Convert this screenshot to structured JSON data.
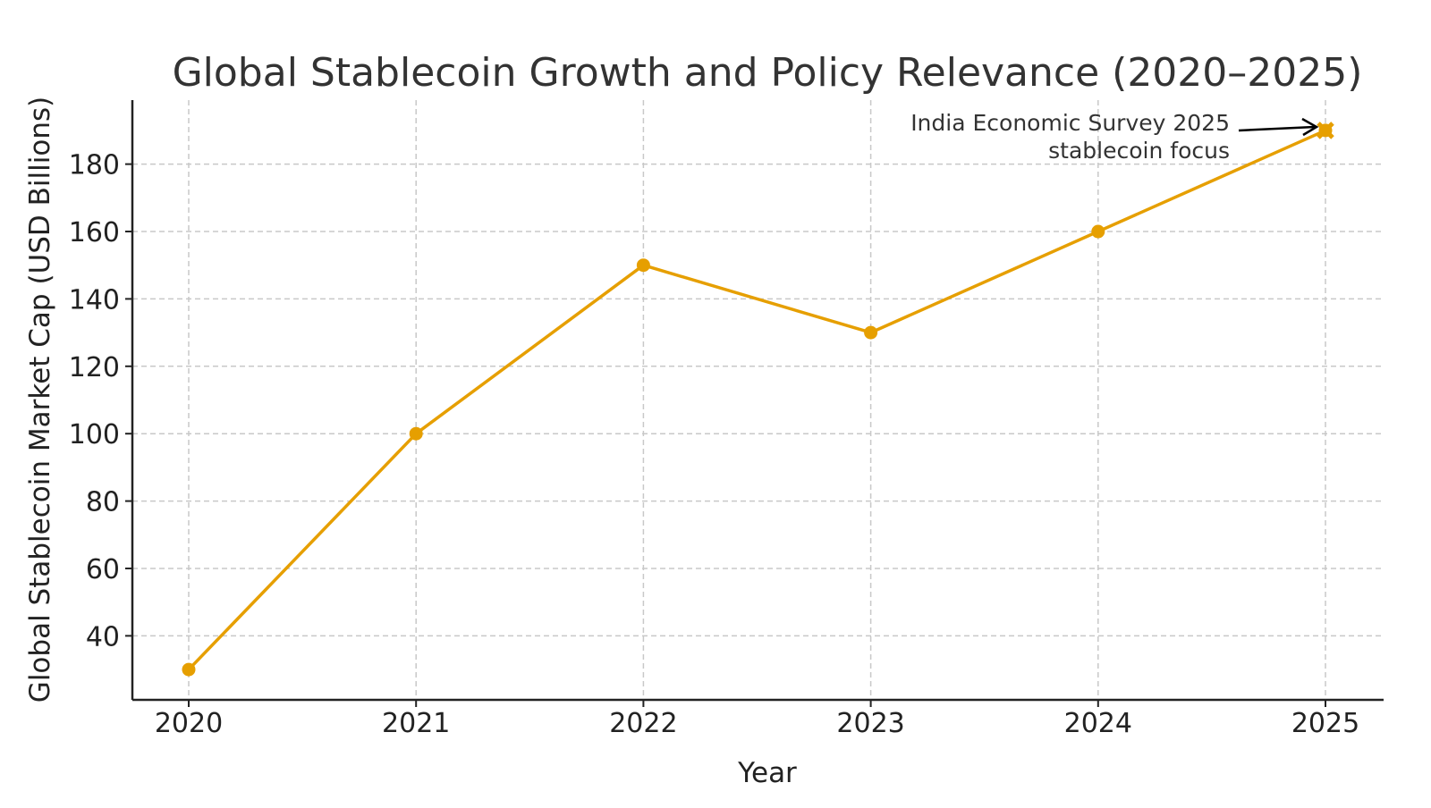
{
  "chart_data": {
    "type": "line",
    "title": "Global Stablecoin Growth and Policy Relevance (2020–2025)",
    "xlabel": "Year",
    "ylabel": "Global Stablecoin Market Cap (USD Billions)",
    "categories": [
      "2020",
      "2021",
      "2022",
      "2023",
      "2024",
      "2025"
    ],
    "values": [
      30,
      100,
      150,
      130,
      160,
      190
    ],
    "yticks": [
      "40",
      "60",
      "80",
      "100",
      "120",
      "140",
      "160",
      "180"
    ],
    "ylim": [
      21,
      199
    ],
    "grid": true,
    "line_color": "#E69F00",
    "marker": "circle",
    "annotation": {
      "lines": [
        "India Economic Survey 2025",
        "stablecoin focus"
      ],
      "target_category": "2025",
      "target_value": 190
    }
  }
}
